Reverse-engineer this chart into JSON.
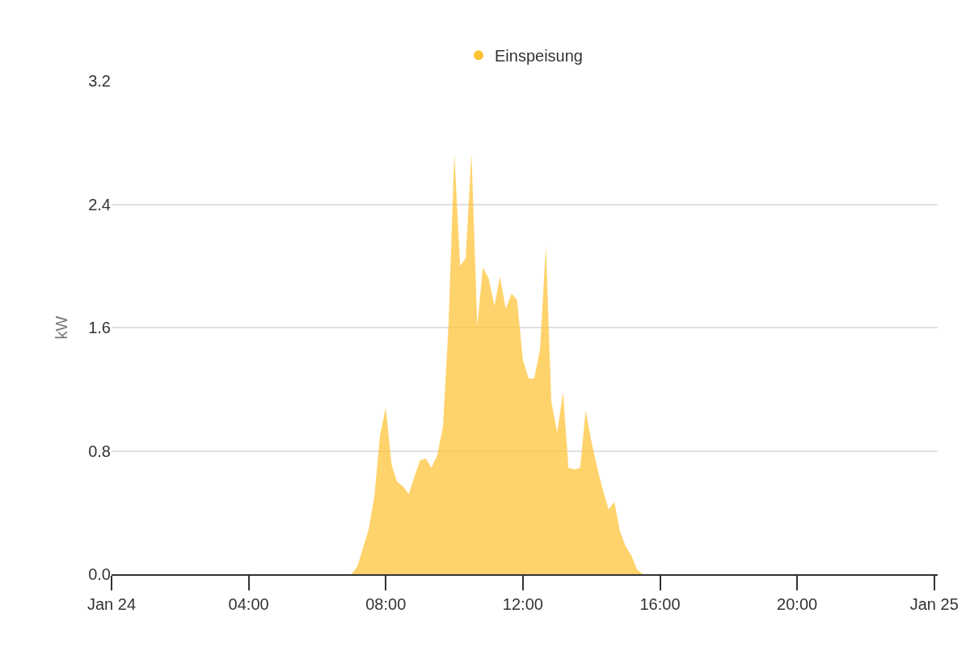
{
  "chart_data": {
    "type": "area",
    "x": [
      0,
      7.0,
      7.17,
      7.5,
      7.67,
      7.83,
      8.0,
      8.17,
      8.33,
      8.5,
      8.67,
      8.83,
      9.0,
      9.17,
      9.33,
      9.5,
      9.67,
      9.83,
      10.0,
      10.17,
      10.33,
      10.5,
      10.67,
      10.83,
      11.0,
      11.17,
      11.33,
      11.5,
      11.67,
      11.83,
      12.0,
      12.17,
      12.33,
      12.5,
      12.67,
      12.83,
      13.0,
      13.17,
      13.33,
      13.5,
      13.67,
      13.83,
      14.0,
      14.17,
      14.33,
      14.5,
      14.67,
      14.83,
      15.0,
      15.17,
      15.33,
      15.5,
      24
    ],
    "series": [
      {
        "name": "Einspeisung",
        "color": "#ffc233",
        "values": [
          0,
          0,
          0.05,
          0.29,
          0.51,
          0.9,
          1.08,
          0.71,
          0.6,
          0.57,
          0.52,
          0.63,
          0.74,
          0.75,
          0.69,
          0.77,
          0.96,
          1.62,
          2.73,
          2.0,
          2.05,
          2.73,
          1.61,
          1.99,
          1.92,
          1.74,
          1.93,
          1.72,
          1.82,
          1.78,
          1.39,
          1.27,
          1.27,
          1.46,
          2.13,
          1.12,
          0.92,
          1.18,
          0.69,
          0.68,
          0.69,
          1.06,
          0.86,
          0.69,
          0.55,
          0.42,
          0.47,
          0.28,
          0.18,
          0.12,
          0.03,
          0,
          0
        ]
      }
    ],
    "ylabel": "kW",
    "xlim": [
      0,
      24.1
    ],
    "xticks": [
      {
        "value": 0,
        "label": "Jan 24"
      },
      {
        "value": 4,
        "label": "04:00"
      },
      {
        "value": 8,
        "label": "08:00"
      },
      {
        "value": 12,
        "label": "12:00"
      },
      {
        "value": 16,
        "label": "16:00"
      },
      {
        "value": 20,
        "label": "20:00"
      },
      {
        "value": 24,
        "label": "Jan 25"
      }
    ],
    "ylim": [
      0,
      3.2
    ],
    "yticks": [
      {
        "value": 0,
        "label": "0.0"
      },
      {
        "value": 0.8,
        "label": "0.8"
      },
      {
        "value": 1.6,
        "label": "1.6"
      },
      {
        "value": 2.4,
        "label": "2.4"
      },
      {
        "value": 3.2,
        "label": "3.2"
      }
    ],
    "grid": "y",
    "legend": "top"
  }
}
